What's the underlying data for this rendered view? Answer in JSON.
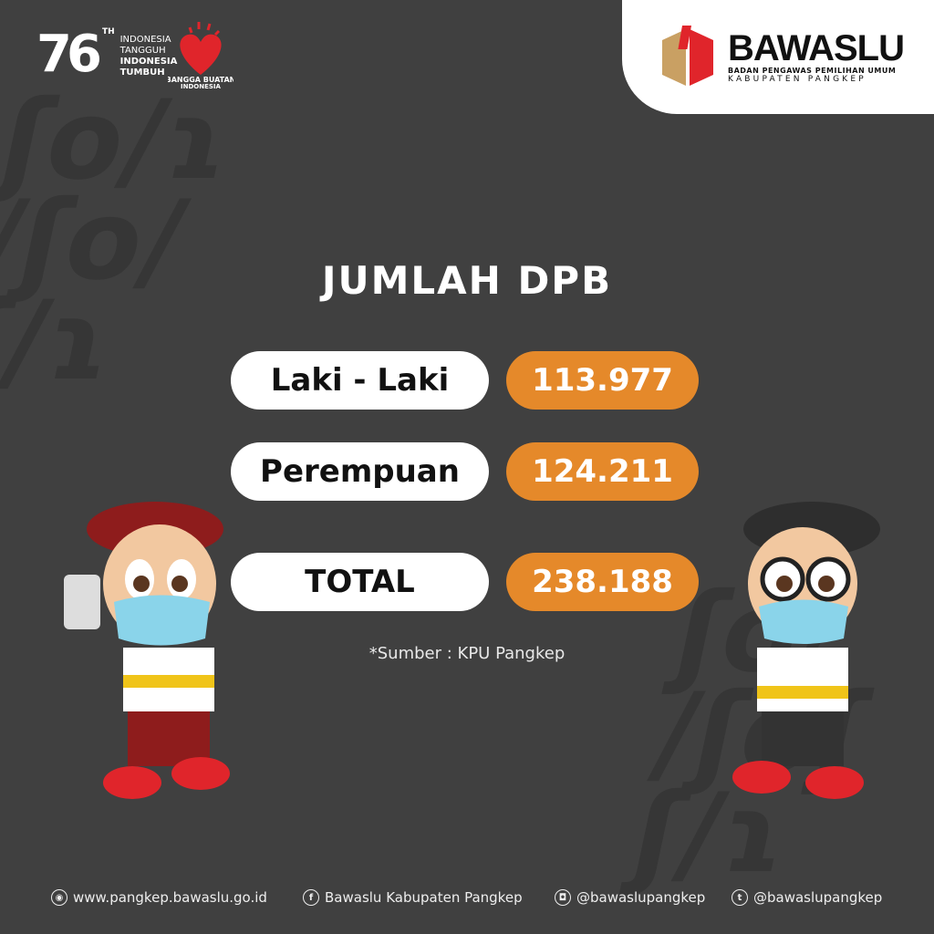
{
  "header": {
    "anniversary_number": "76",
    "anniversary_suffix": "TH",
    "tagline": [
      "INDONESIA",
      "TANGGUH",
      "INDONESIA",
      "TUMBUH"
    ],
    "bangga_logo_text": "BANGGA BUATAN INDONESIA",
    "org_name": "BAWASLU",
    "org_subtitle": "BADAN PENGAWAS PEMILIHAN UMUM",
    "org_region": "KABUPATEN PANGKEP"
  },
  "main": {
    "title": "JUMLAH DPB",
    "rows": [
      {
        "label": "Laki - Laki",
        "value": "113.977"
      },
      {
        "label": "Perempuan",
        "value": "124.211"
      },
      {
        "label": "TOTAL",
        "value": "238.188"
      }
    ],
    "source": "*Sumber : KPU Pangkep"
  },
  "footer": {
    "items": [
      {
        "icon": "rss-icon",
        "text": "www.pangkep.bawaslu.go.id"
      },
      {
        "icon": "facebook-icon",
        "text": "Bawaslu Kabupaten Pangkep"
      },
      {
        "icon": "instagram-icon",
        "text": "@bawaslupangkep"
      },
      {
        "icon": "twitter-icon",
        "text": "@bawaslupangkep"
      }
    ]
  },
  "colors": {
    "background": "#404040",
    "accent": "#e5892a",
    "brand_red": "#e0252b",
    "brand_gold": "#c9a063"
  }
}
